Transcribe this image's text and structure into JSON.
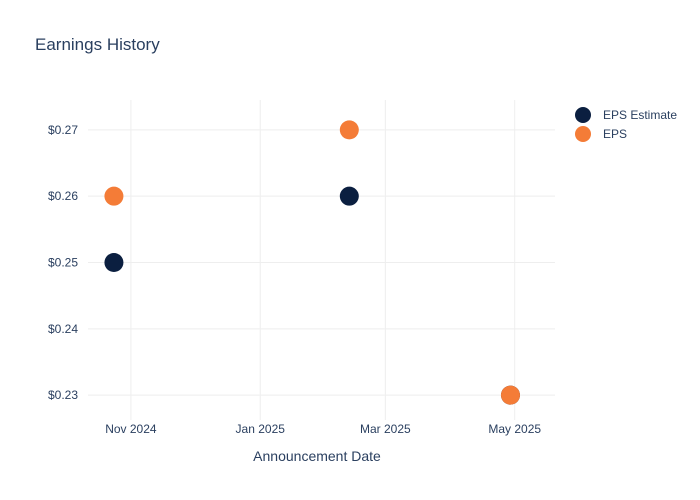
{
  "chart_data": {
    "type": "scatter",
    "title": "Earnings History",
    "xlabel": "Announcement Date",
    "ylabel": "",
    "x_ticks": [
      {
        "label": "Nov 2024",
        "date": "2024-11-01"
      },
      {
        "label": "Jan 2025",
        "date": "2025-01-01"
      },
      {
        "label": "Mar 2025",
        "date": "2025-03-01"
      },
      {
        "label": "May 2025",
        "date": "2025-05-01"
      }
    ],
    "y_ticks": [
      {
        "label": "$0.23",
        "value": 0.23
      },
      {
        "label": "$0.24",
        "value": 0.24
      },
      {
        "label": "$0.25",
        "value": 0.25
      },
      {
        "label": "$0.26",
        "value": 0.26
      },
      {
        "label": "$0.27",
        "value": 0.27
      }
    ],
    "xlim": [
      "2024-10-08",
      "2025-05-20"
    ],
    "ylim": [
      0.2255,
      0.2745
    ],
    "grid": true,
    "legend_position": "top-right",
    "series": [
      {
        "name": "EPS Estimate",
        "color": "#0b1f40",
        "points": [
          {
            "x": "2024-10-24",
            "y": 0.25
          },
          {
            "x": "2025-02-12",
            "y": 0.26
          },
          {
            "x": "2025-04-29",
            "y": 0.23
          }
        ]
      },
      {
        "name": "EPS",
        "color": "#f47c37",
        "points": [
          {
            "x": "2024-10-24",
            "y": 0.26
          },
          {
            "x": "2025-02-12",
            "y": 0.27
          },
          {
            "x": "2025-04-29",
            "y": 0.23
          }
        ]
      }
    ]
  }
}
